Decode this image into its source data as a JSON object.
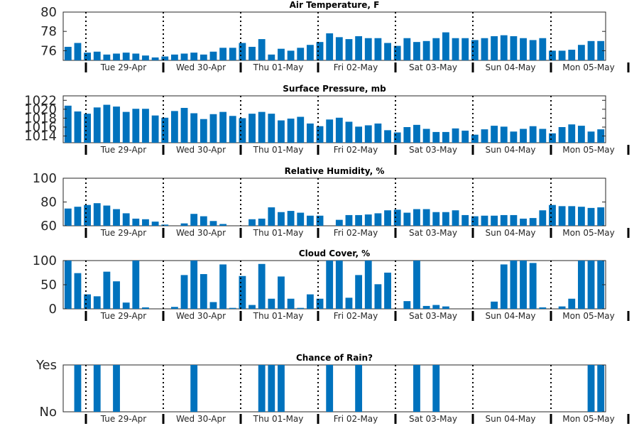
{
  "colors": {
    "bar": "#0072bd",
    "axis": "#262626",
    "background": "#ffffff"
  },
  "chart_data": [
    {
      "type": "bar",
      "title": "Air Temperature, F",
      "ylim": [
        75,
        80
      ],
      "yticks": [
        76,
        78,
        80
      ],
      "ytick_labels": [
        "76",
        "78",
        "80"
      ],
      "day_labels": [
        "Tue 29-Apr",
        "Wed 30-Apr",
        "Thu 01-May",
        "Fri 02-May",
        "Sat 03-May",
        "Sun 04-May",
        "Mon 05-May"
      ],
      "values": [
        76.4,
        76.8,
        75.8,
        75.9,
        75.6,
        75.7,
        75.8,
        75.7,
        75.5,
        75.3,
        75.4,
        75.6,
        75.7,
        75.8,
        75.6,
        75.9,
        76.3,
        76.3,
        76.8,
        76.4,
        77.2,
        75.6,
        76.2,
        76.0,
        76.3,
        76.6,
        76.9,
        77.8,
        77.4,
        77.2,
        77.5,
        77.3,
        77.3,
        76.8,
        76.5,
        77.3,
        76.9,
        77.0,
        77.3,
        77.9,
        77.3,
        77.3,
        77.1,
        77.3,
        77.5,
        77.6,
        77.5,
        77.3,
        77.1,
        77.3,
        76.0,
        76.0,
        76.1,
        76.6,
        77.0,
        77.0
      ]
    },
    {
      "type": "bar",
      "title": "Surface Pressure, mb",
      "ylim": [
        1012.5,
        1023
      ],
      "yticks": [
        1014,
        1016,
        1018,
        1020,
        1022
      ],
      "ytick_labels": [
        "1014",
        "1016",
        "1018",
        "1020",
        "1022"
      ],
      "day_labels": [
        "Tue 29-Apr",
        "Wed 30-Apr",
        "Thu 01-May",
        "Fri 02-May",
        "Sat 03-May",
        "Sun 04-May",
        "Mon 05-May"
      ],
      "values": [
        1020.8,
        1019.5,
        1019.0,
        1020.4,
        1021.0,
        1020.6,
        1019.4,
        1020.1,
        1020.1,
        1018.6,
        1018.1,
        1019.6,
        1020.3,
        1019.1,
        1017.8,
        1018.9,
        1019.4,
        1018.5,
        1018.0,
        1019.0,
        1019.4,
        1019.0,
        1017.5,
        1017.9,
        1018.3,
        1016.8,
        1016.2,
        1017.7,
        1018.1,
        1017.2,
        1016.1,
        1016.4,
        1016.8,
        1015.3,
        1014.8,
        1016.0,
        1016.5,
        1015.6,
        1014.9,
        1014.9,
        1015.7,
        1015.2,
        1014.3,
        1015.5,
        1016.3,
        1016.1,
        1015.0,
        1015.6,
        1016.2,
        1015.6,
        1014.6,
        1016.0,
        1016.6,
        1016.3,
        1015.0,
        1015.5
      ]
    },
    {
      "type": "bar",
      "title": "Relative Humidity, %",
      "ylim": [
        60,
        100
      ],
      "yticks": [
        60,
        80,
        100
      ],
      "ytick_labels": [
        "60",
        "80",
        "100"
      ],
      "day_labels": [
        "Tue 29-Apr",
        "Wed 30-Apr",
        "Thu 01-May",
        "Fri 02-May",
        "Sat 03-May",
        "Sun 04-May",
        "Mon 05-May"
      ],
      "values": [
        74.5,
        76,
        77.5,
        79,
        77,
        74,
        70.5,
        66,
        65.5,
        63.5,
        61,
        59,
        62,
        70,
        68,
        64,
        61.5,
        59,
        60,
        65.5,
        66,
        75.5,
        71.5,
        72.5,
        71,
        68.5,
        68.5,
        59,
        65,
        69,
        69,
        69.5,
        70.5,
        73,
        73.5,
        71,
        74,
        74,
        71.5,
        71.5,
        73,
        69,
        68,
        68.5,
        68.5,
        69,
        69,
        66,
        66.5,
        73,
        77.5,
        76.5,
        76.5,
        76,
        75,
        75.5
      ]
    },
    {
      "type": "bar",
      "title": "Cloud Cover, %",
      "ylim": [
        0,
        100
      ],
      "yticks": [
        0,
        50,
        100
      ],
      "ytick_labels": [
        "0",
        "50",
        "100"
      ],
      "day_labels": [
        "Tue 29-Apr",
        "Wed 30-Apr",
        "Thu 01-May",
        "Fri 02-May",
        "Sat 03-May",
        "Sun 04-May",
        "Mon 05-May"
      ],
      "values": [
        100,
        74,
        30,
        26,
        77,
        57,
        13,
        100,
        3,
        0,
        0,
        4,
        70,
        100,
        72,
        14,
        92,
        2,
        68,
        8,
        93,
        21,
        67,
        21,
        2,
        30,
        21,
        100,
        100,
        23,
        70,
        100,
        51,
        75,
        0,
        16,
        100,
        6,
        8,
        5,
        0,
        0,
        0,
        0,
        15,
        92,
        100,
        100,
        95,
        3,
        0,
        5,
        21,
        100,
        100,
        100
      ]
    },
    {
      "type": "bar",
      "title": "Chance of Rain?",
      "ylim": [
        0,
        1
      ],
      "yticks": [
        0,
        1
      ],
      "ytick_labels": [
        "No",
        "Yes"
      ],
      "day_labels": [
        "Tue 29-Apr",
        "Wed 30-Apr",
        "Thu 01-May",
        "Fri 02-May",
        "Sat 03-May",
        "Sun 04-May",
        "Mon 05-May"
      ],
      "values": [
        0,
        1,
        0,
        1,
        0,
        1,
        0,
        0,
        0,
        0,
        0,
        0,
        0,
        1,
        0,
        0,
        0,
        0,
        0,
        0,
        1,
        1,
        1,
        0,
        0,
        0,
        0,
        1,
        0,
        0,
        1,
        0,
        0,
        0,
        0,
        0,
        1,
        0,
        1,
        0,
        0,
        0,
        0,
        0,
        0,
        0,
        0,
        0,
        0,
        0,
        0,
        0,
        0,
        0,
        1,
        1
      ]
    }
  ]
}
